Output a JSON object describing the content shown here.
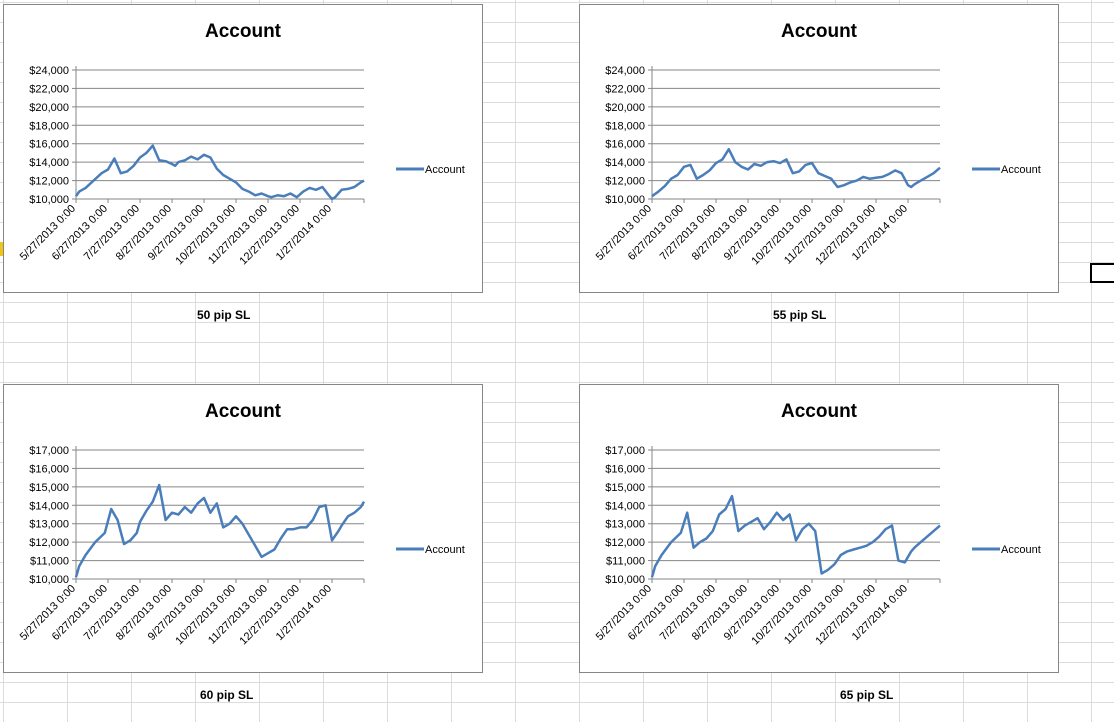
{
  "cell_labels": [
    "50 pip SL",
    "55 pip SL",
    "60 pip SL",
    "65 pip SL"
  ],
  "chart_data": [
    {
      "type": "line",
      "title": "Account",
      "legend": "Account",
      "legend_position": "right",
      "grid": true,
      "color": "#4a7ebb",
      "categories": [
        "5/27/2013 0:00",
        "6/27/2013 0:00",
        "7/27/2013 0:00",
        "8/27/2013 0:00",
        "9/27/2013 0:00",
        "10/27/2013 0:00",
        "11/27/2013 0:00",
        "12/27/2013 0:00",
        "1/27/2014 0:00"
      ],
      "yticks": [
        "$10,000",
        "$12,000",
        "$14,000",
        "$16,000",
        "$18,000",
        "$20,000",
        "$22,000",
        "$24,000"
      ],
      "ylim": [
        10000,
        24000
      ],
      "xlim": [
        0,
        9
      ],
      "x": [
        0,
        0.1,
        0.3,
        0.55,
        0.8,
        1,
        1.2,
        1.4,
        1.6,
        1.8,
        2.0,
        2.2,
        2.4,
        2.6,
        2.8,
        3.0,
        3.1,
        3.2,
        3.4,
        3.6,
        3.8,
        4.0,
        4.2,
        4.4,
        4.6,
        4.8,
        5.0,
        5.2,
        5.4,
        5.6,
        5.8,
        6.0,
        6.1,
        6.3,
        6.5,
        6.7,
        6.9,
        7.1,
        7.3,
        7.5,
        7.7,
        7.9,
        8.0,
        8.1,
        8.2,
        8.3,
        8.5,
        8.7,
        8.9,
        9.0
      ],
      "values": [
        10300,
        10800,
        11200,
        12000,
        12800,
        13200,
        14400,
        12800,
        13000,
        13600,
        14500,
        15000,
        15800,
        14200,
        14100,
        13800,
        13600,
        14000,
        14200,
        14600,
        14300,
        14800,
        14500,
        13300,
        12600,
        12200,
        11800,
        11100,
        10800,
        10400,
        10600,
        10300,
        10200,
        10400,
        10300,
        10600,
        10200,
        10800,
        11200,
        11000,
        11300,
        10400,
        10000,
        10200,
        10600,
        11000,
        11100,
        11300,
        11800,
        12000
      ]
    },
    {
      "type": "line",
      "title": "Account",
      "legend": "Account",
      "legend_position": "right",
      "grid": true,
      "color": "#4a7ebb",
      "categories": [
        "5/27/2013 0:00",
        "6/27/2013 0:00",
        "7/27/2013 0:00",
        "8/27/2013 0:00",
        "9/27/2013 0:00",
        "10/27/2013 0:00",
        "11/27/2013 0:00",
        "12/27/2013 0:00",
        "1/27/2014 0:00"
      ],
      "yticks": [
        "$10,000",
        "$12,000",
        "$14,000",
        "$16,000",
        "$18,000",
        "$20,000",
        "$22,000",
        "$24,000"
      ],
      "ylim": [
        10000,
        24000
      ],
      "xlim": [
        0,
        9
      ],
      "x": [
        0,
        0.2,
        0.4,
        0.6,
        0.8,
        1.0,
        1.2,
        1.4,
        1.6,
        1.8,
        2.0,
        2.2,
        2.4,
        2.6,
        2.8,
        3.0,
        3.2,
        3.4,
        3.6,
        3.8,
        4.0,
        4.2,
        4.4,
        4.6,
        4.8,
        5.0,
        5.2,
        5.4,
        5.6,
        5.8,
        6.0,
        6.2,
        6.4,
        6.6,
        6.8,
        7.0,
        7.2,
        7.4,
        7.6,
        7.8,
        8.0,
        8.1,
        8.2,
        8.4,
        8.6,
        8.8,
        9.0
      ],
      "values": [
        10300,
        10800,
        11400,
        12200,
        12600,
        13500,
        13700,
        12200,
        12600,
        13100,
        13900,
        14300,
        15400,
        14000,
        13500,
        13200,
        13800,
        13600,
        14000,
        14100,
        13900,
        14300,
        12800,
        13000,
        13700,
        13900,
        12800,
        12500,
        12200,
        11300,
        11500,
        11800,
        12000,
        12400,
        12200,
        12300,
        12400,
        12700,
        13100,
        12800,
        11500,
        11300,
        11600,
        12000,
        12400,
        12800,
        13400
      ]
    },
    {
      "type": "line",
      "title": "Account",
      "legend": "Account",
      "legend_position": "right",
      "grid": true,
      "color": "#4a7ebb",
      "categories": [
        "5/27/2013 0:00",
        "6/27/2013 0:00",
        "7/27/2013 0:00",
        "8/27/2013 0:00",
        "9/27/2013 0:00",
        "10/27/2013 0:00",
        "11/27/2013 0:00",
        "12/27/2013 0:00",
        "1/27/2014 0:00"
      ],
      "yticks": [
        "$10,000",
        "$11,000",
        "$12,000",
        "$13,000",
        "$14,000",
        "$15,000",
        "$16,000",
        "$17,000"
      ],
      "ylim": [
        10000,
        17000
      ],
      "xlim": [
        0,
        9
      ],
      "x": [
        0,
        0.1,
        0.3,
        0.6,
        0.9,
        1.1,
        1.3,
        1.5,
        1.7,
        1.9,
        2.0,
        2.2,
        2.4,
        2.6,
        2.8,
        3.0,
        3.2,
        3.4,
        3.6,
        3.8,
        4.0,
        4.2,
        4.4,
        4.6,
        4.8,
        5.0,
        5.2,
        5.4,
        5.6,
        5.8,
        6.0,
        6.2,
        6.4,
        6.6,
        6.8,
        7.0,
        7.2,
        7.4,
        7.6,
        7.8,
        8.0,
        8.2,
        8.3,
        8.5,
        8.7,
        8.9,
        9.0
      ],
      "values": [
        10100,
        10700,
        11300,
        12000,
        12500,
        13800,
        13200,
        11900,
        12100,
        12500,
        13100,
        13700,
        14200,
        15100,
        13200,
        13600,
        13500,
        13900,
        13600,
        14100,
        14400,
        13600,
        14100,
        12800,
        13000,
        13400,
        13000,
        12400,
        11800,
        11200,
        11400,
        11600,
        12200,
        12700,
        12700,
        12800,
        12800,
        13200,
        13900,
        14000,
        12100,
        12600,
        12900,
        13400,
        13600,
        13900,
        14200
      ]
    },
    {
      "type": "line",
      "title": "Account",
      "legend": "Account",
      "legend_position": "right",
      "grid": true,
      "color": "#4a7ebb",
      "categories": [
        "5/27/2013 0:00",
        "6/27/2013 0:00",
        "7/27/2013 0:00",
        "8/27/2013 0:00",
        "9/27/2013 0:00",
        "10/27/2013 0:00",
        "11/27/2013 0:00",
        "12/27/2013 0:00",
        "1/27/2014 0:00"
      ],
      "yticks": [
        "$10,000",
        "$11,000",
        "$12,000",
        "$13,000",
        "$14,000",
        "$15,000",
        "$16,000",
        "$17,000"
      ],
      "ylim": [
        10000,
        17000
      ],
      "xlim": [
        0,
        9
      ],
      "x": [
        0,
        0.1,
        0.3,
        0.6,
        0.9,
        1.1,
        1.3,
        1.5,
        1.7,
        1.9,
        2.1,
        2.3,
        2.5,
        2.7,
        2.9,
        3.1,
        3.3,
        3.5,
        3.7,
        3.9,
        4.1,
        4.3,
        4.5,
        4.7,
        4.9,
        5.1,
        5.3,
        5.5,
        5.7,
        5.9,
        6.1,
        6.3,
        6.5,
        6.7,
        6.9,
        7.1,
        7.3,
        7.5,
        7.7,
        7.9,
        8.0,
        8.1,
        8.2,
        8.4,
        8.6,
        8.8,
        9.0
      ],
      "values": [
        10100,
        10700,
        11300,
        12000,
        12500,
        13600,
        11700,
        12000,
        12200,
        12600,
        13500,
        13800,
        14500,
        12600,
        12900,
        13100,
        13300,
        12700,
        13100,
        13600,
        13200,
        13500,
        12100,
        12700,
        13000,
        12600,
        10300,
        10500,
        10800,
        11300,
        11500,
        11600,
        11700,
        11800,
        12000,
        12300,
        12700,
        12900,
        11000,
        10900,
        11200,
        11500,
        11700,
        12000,
        12300,
        12600,
        12900
      ]
    }
  ]
}
